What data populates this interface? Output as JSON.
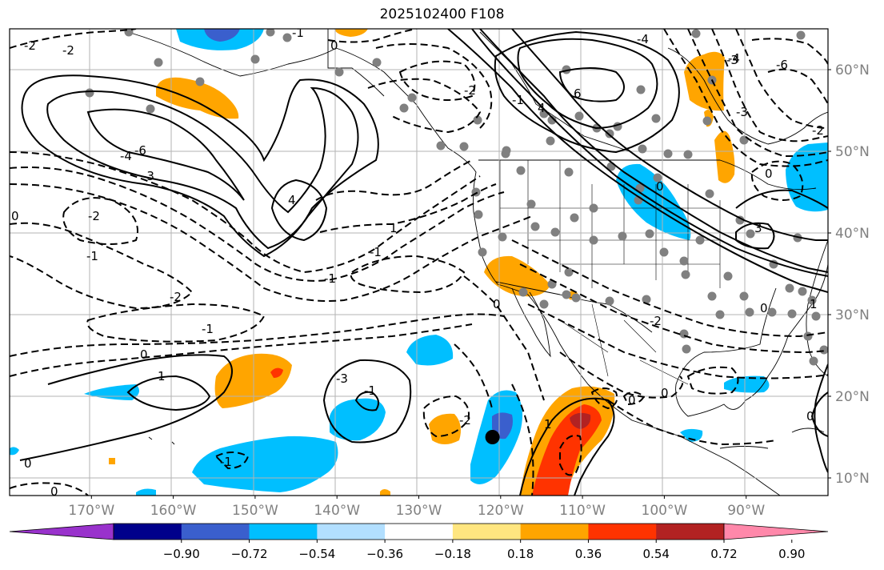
{
  "title": "2025102400 F108",
  "map": {
    "lon_ticks": [
      {
        "value": -170,
        "label": "170°W"
      },
      {
        "value": -160,
        "label": "160°W"
      },
      {
        "value": -150,
        "label": "150°W"
      },
      {
        "value": -140,
        "label": "140°W"
      },
      {
        "value": -130,
        "label": "130°W"
      },
      {
        "value": -120,
        "label": "120°W"
      },
      {
        "value": -110,
        "label": "110°W"
      },
      {
        "value": -100,
        "label": "100°W"
      },
      {
        "value": -90,
        "label": "90°W"
      }
    ],
    "lat_ticks": [
      {
        "value": 60,
        "label": "60°N"
      },
      {
        "value": 50,
        "label": "50°N"
      },
      {
        "value": 40,
        "label": "40°N"
      },
      {
        "value": 30,
        "label": "30°N"
      },
      {
        "value": 20,
        "label": "20°N"
      },
      {
        "value": 10,
        "label": "10°N"
      }
    ],
    "extent": {
      "lon_min": -180,
      "lon_max": -80,
      "lat_min": 8,
      "lat_max": 65
    },
    "grid": true,
    "marker": {
      "lon": -121,
      "lat": 15
    },
    "colors": {
      "shade_blue": "#00bfff",
      "shade_mid_blue": "#3a5fcd",
      "shade_orange": "#ffa500",
      "shade_red_orange": "#ff3300",
      "shade_dark_red": "#b22222",
      "station_dot": "#808080"
    },
    "contour_labels": [
      "-2",
      "-2",
      "-1",
      "0",
      "-4",
      "-6",
      "-3",
      "4",
      "-2",
      "-1",
      "-2",
      "-1",
      "0",
      "1",
      "-1",
      "1",
      "-1",
      "0",
      "0",
      "-1",
      "-1",
      "-3",
      "-2",
      "1",
      "-2",
      "4",
      "6",
      "-4",
      "-3",
      "-1",
      "-3",
      "3",
      "0",
      "-2",
      "0",
      "0",
      "1",
      "0",
      "0",
      "-6",
      "-4",
      "0",
      "-2",
      "0",
      "0"
    ]
  },
  "colorbar": {
    "colors": [
      "#9932cc",
      "#00008b",
      "#3a5fcd",
      "#00bfff",
      "#b2dfff",
      "#ffffff",
      "#ffe680",
      "#ffa500",
      "#ff3300",
      "#b22222",
      "#ff88aa"
    ],
    "tick_labels": [
      "−0.90",
      "−0.72",
      "−0.54",
      "−0.36",
      "−0.18",
      "0.18",
      "0.36",
      "0.54",
      "0.72",
      "0.90"
    ]
  }
}
